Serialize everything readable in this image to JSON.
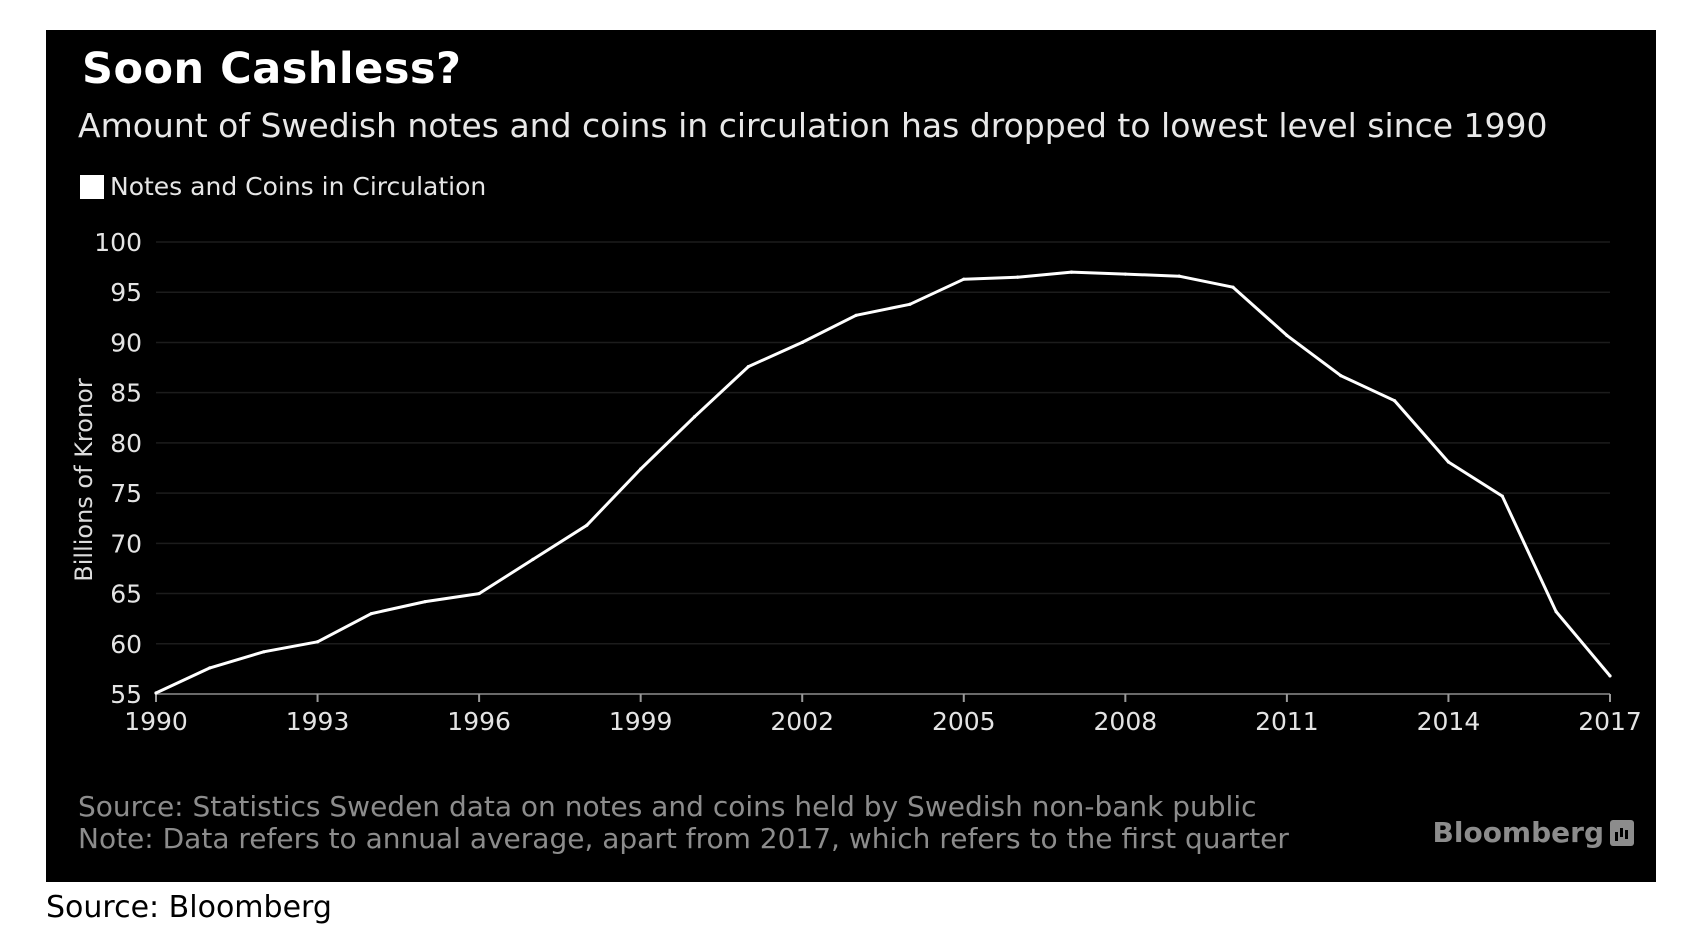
{
  "chart_data": {
    "type": "line",
    "title": "Soon Cashless?",
    "subtitle": "Amount of Swedish notes and coins in circulation has dropped to lowest level since 1990",
    "ylabel": "Billions of Kronor",
    "xlabel": "",
    "xlim": [
      1990,
      2017
    ],
    "ylim": [
      55,
      100
    ],
    "x_ticks": [
      "1990",
      "1993",
      "1996",
      "1999",
      "2002",
      "2005",
      "2008",
      "2011",
      "2014",
      "2017"
    ],
    "y_ticks": [
      "100",
      "95",
      "90",
      "85",
      "80",
      "75",
      "70",
      "65",
      "60",
      "55"
    ],
    "grid": true,
    "legend_position": "top-left",
    "series": [
      {
        "name": "Notes and Coins in Circulation",
        "color": "#ffffff",
        "x": [
          1990,
          1991,
          1992,
          1993,
          1994,
          1995,
          1996,
          1997,
          1998,
          1999,
          2000,
          2001,
          2002,
          2003,
          2004,
          2005,
          2006,
          2007,
          2008,
          2009,
          2010,
          2011,
          2012,
          2013,
          2014,
          2015,
          2016,
          2017
        ],
        "values": [
          55.1,
          57.6,
          59.2,
          60.2,
          63.0,
          64.2,
          65.0,
          68.4,
          71.8,
          77.4,
          82.6,
          87.6,
          90.0,
          92.7,
          93.8,
          96.3,
          96.5,
          97.0,
          96.8,
          96.6,
          95.5,
          90.7,
          86.7,
          84.2,
          78.1,
          74.7,
          63.2,
          56.8
        ]
      }
    ]
  },
  "footer": {
    "source": "Source: Statistics Sweden data on notes and coins held by Swedish non-bank public",
    "note": "Note: Data refers to annual average, apart from 2017, which refers to the first quarter",
    "brand": "Bloomberg"
  },
  "caption": "Source: Bloomberg",
  "colors": {
    "background": "#000000",
    "line": "#ffffff",
    "grid": "#1c1c1c",
    "footer_text": "#8c8c8c"
  }
}
